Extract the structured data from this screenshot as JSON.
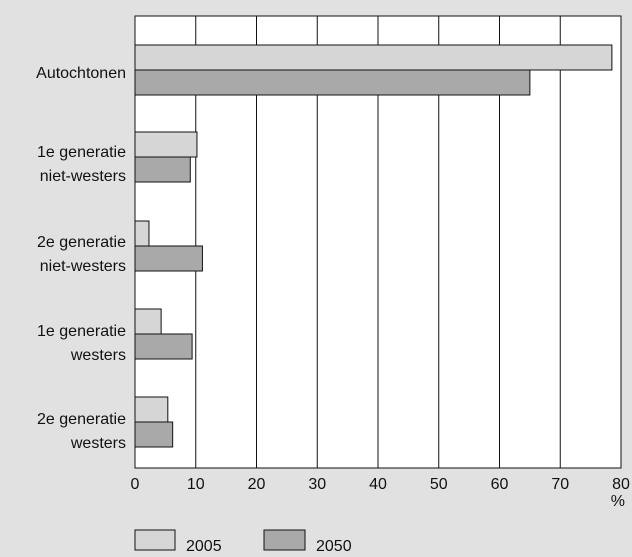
{
  "chart_data": {
    "type": "bar",
    "orientation": "horizontal",
    "categories": [
      [
        "Autochtonen"
      ],
      [
        "1e generatie",
        "niet-westers"
      ],
      [
        "2e generatie",
        "niet-westers"
      ],
      [
        "1e generatie",
        "westers"
      ],
      [
        "2e generatie",
        "westers"
      ]
    ],
    "series": [
      {
        "name": "2005",
        "values": [
          78.5,
          10.2,
          2.3,
          4.3,
          5.4
        ],
        "color": "#d6d6d6"
      },
      {
        "name": "2050",
        "values": [
          65.0,
          9.1,
          11.1,
          9.4,
          6.2
        ],
        "color": "#a9a9a9"
      }
    ],
    "xlim": [
      0,
      80
    ],
    "xticks": [
      0,
      10,
      20,
      30,
      40,
      50,
      60,
      70,
      80
    ],
    "xunit": "%",
    "grid": true,
    "legend_position": "bottom-left"
  }
}
